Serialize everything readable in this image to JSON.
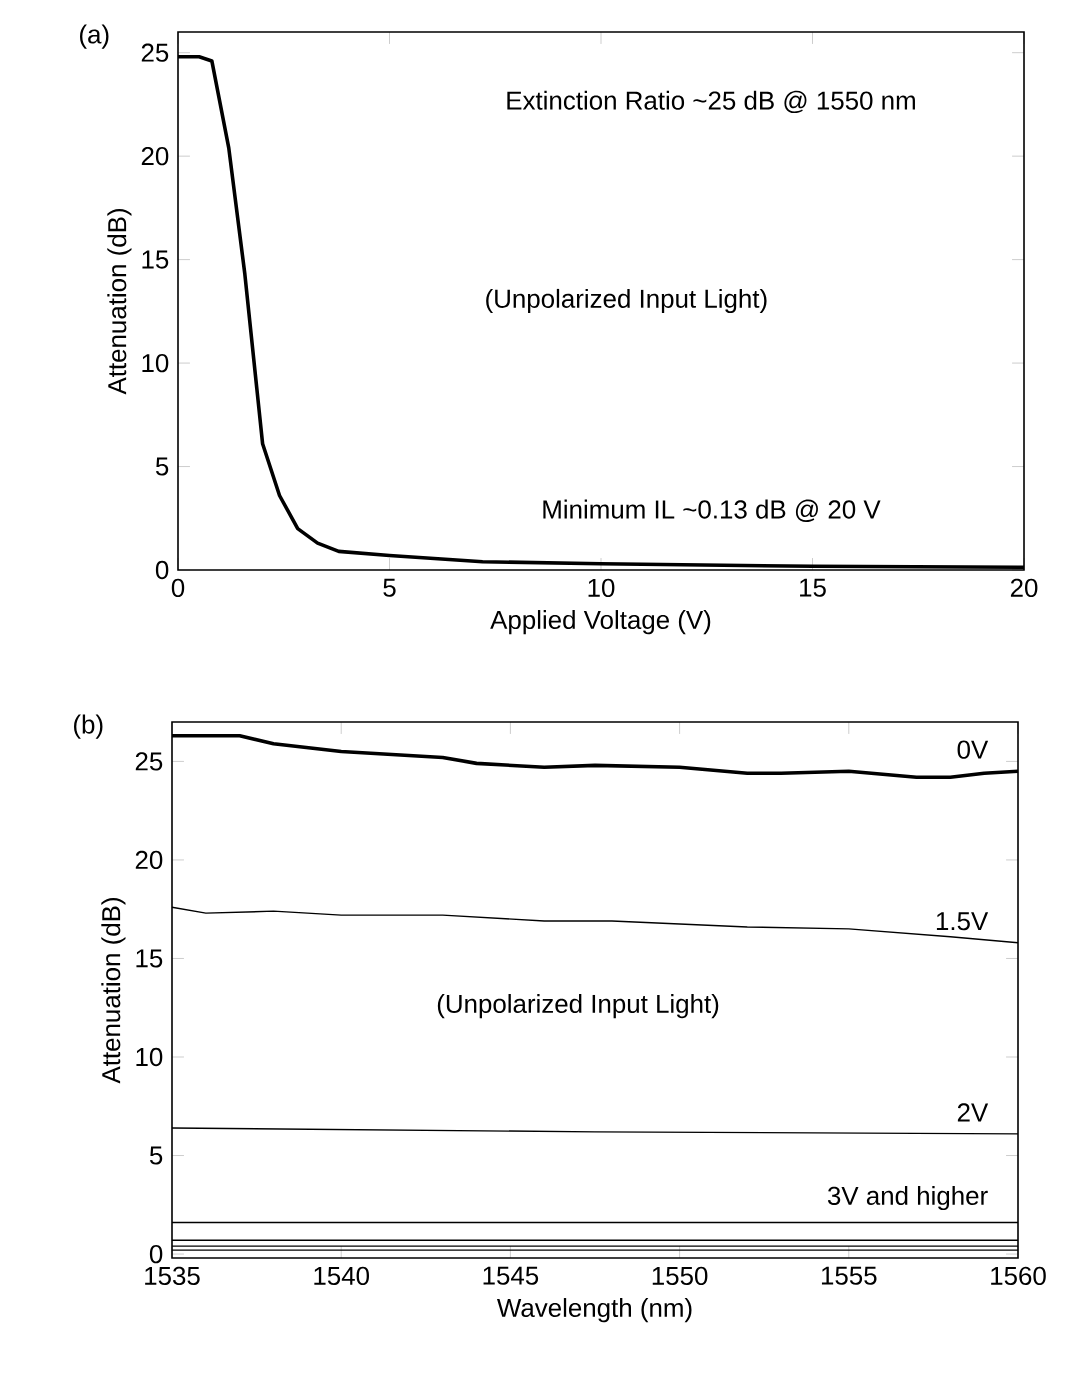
{
  "chart_data": [
    {
      "type": "line",
      "title": "(a)",
      "xlabel": "Applied Voltage (V)",
      "ylabel": "Attenuation (dB)",
      "xlim": [
        0,
        20
      ],
      "ylim": [
        0,
        26
      ],
      "xticks": [
        0,
        5,
        10,
        15,
        20
      ],
      "yticks": [
        0,
        5,
        10,
        15,
        20,
        25
      ],
      "grid": false,
      "legend": false,
      "line_style": "solid",
      "marker": "none",
      "annotations": [
        "Extinction Ratio ~25 dB @ 1550 nm",
        "(Unpolarized Input Light)",
        "Minimum IL ~0.13 dB @ 20 V"
      ],
      "series": [
        {
          "color": "#000000",
          "x": [
            0,
            0.5,
            0.8,
            1.2,
            1.58,
            2.0,
            2.4,
            2.83,
            3.3,
            3.8,
            5,
            7.2,
            10,
            15,
            20
          ],
          "values": [
            24.8,
            24.8,
            24.6,
            20.4,
            14.3,
            6.1,
            3.6,
            2.0,
            1.3,
            0.9,
            0.7,
            0.4,
            0.3,
            0.18,
            0.13
          ]
        }
      ]
    },
    {
      "type": "line",
      "title": "(b)",
      "xlabel": "Wavelength (nm)",
      "ylabel": "Attenuation (dB)",
      "xlim": [
        1535,
        1560
      ],
      "ylim": [
        -0.2,
        27
      ],
      "xticks": [
        1535,
        1540,
        1545,
        1550,
        1555,
        1560
      ],
      "yticks": [
        0,
        5,
        10,
        15,
        20,
        25
      ],
      "grid": false,
      "legend": false,
      "line_style": "solid",
      "marker": "none",
      "annotations": [
        "(Unpolarized Input Light)"
      ],
      "series": [
        {
          "name": "0V",
          "color": "#000000",
          "x": [
            1535,
            1537,
            1538,
            1540,
            1541,
            1543,
            1544,
            1546,
            1547.5,
            1550,
            1552,
            1553,
            1555,
            1557,
            1558,
            1559,
            1560
          ],
          "values": [
            26.3,
            26.3,
            25.9,
            25.5,
            25.4,
            25.2,
            24.9,
            24.7,
            24.8,
            24.7,
            24.4,
            24.4,
            24.5,
            24.2,
            24.2,
            24.4,
            24.5
          ]
        },
        {
          "name": "1.5V",
          "color": "#000000",
          "x": [
            1535,
            1536,
            1538,
            1540,
            1543,
            1546,
            1548,
            1552,
            1555,
            1558,
            1560
          ],
          "values": [
            17.6,
            17.3,
            17.4,
            17.2,
            17.2,
            16.9,
            16.9,
            16.6,
            16.5,
            16.1,
            15.8
          ]
        },
        {
          "name": "2V",
          "color": "#000000",
          "x": [
            1535,
            1547.5,
            1560
          ],
          "values": [
            6.4,
            6.2,
            6.1
          ]
        },
        {
          "name": "3V and higher",
          "color": "#000000",
          "x": [
            1535,
            1560
          ],
          "values": [
            1.6,
            1.6
          ]
        },
        {
          "color": "#000000",
          "x": [
            1535,
            1560
          ],
          "values": [
            0.7,
            0.7
          ]
        },
        {
          "color": "#000000",
          "x": [
            1535,
            1560
          ],
          "values": [
            0.4,
            0.4
          ]
        },
        {
          "color": "#000000",
          "x": [
            1535,
            1560
          ],
          "values": [
            0.2,
            0.2
          ]
        }
      ]
    }
  ]
}
